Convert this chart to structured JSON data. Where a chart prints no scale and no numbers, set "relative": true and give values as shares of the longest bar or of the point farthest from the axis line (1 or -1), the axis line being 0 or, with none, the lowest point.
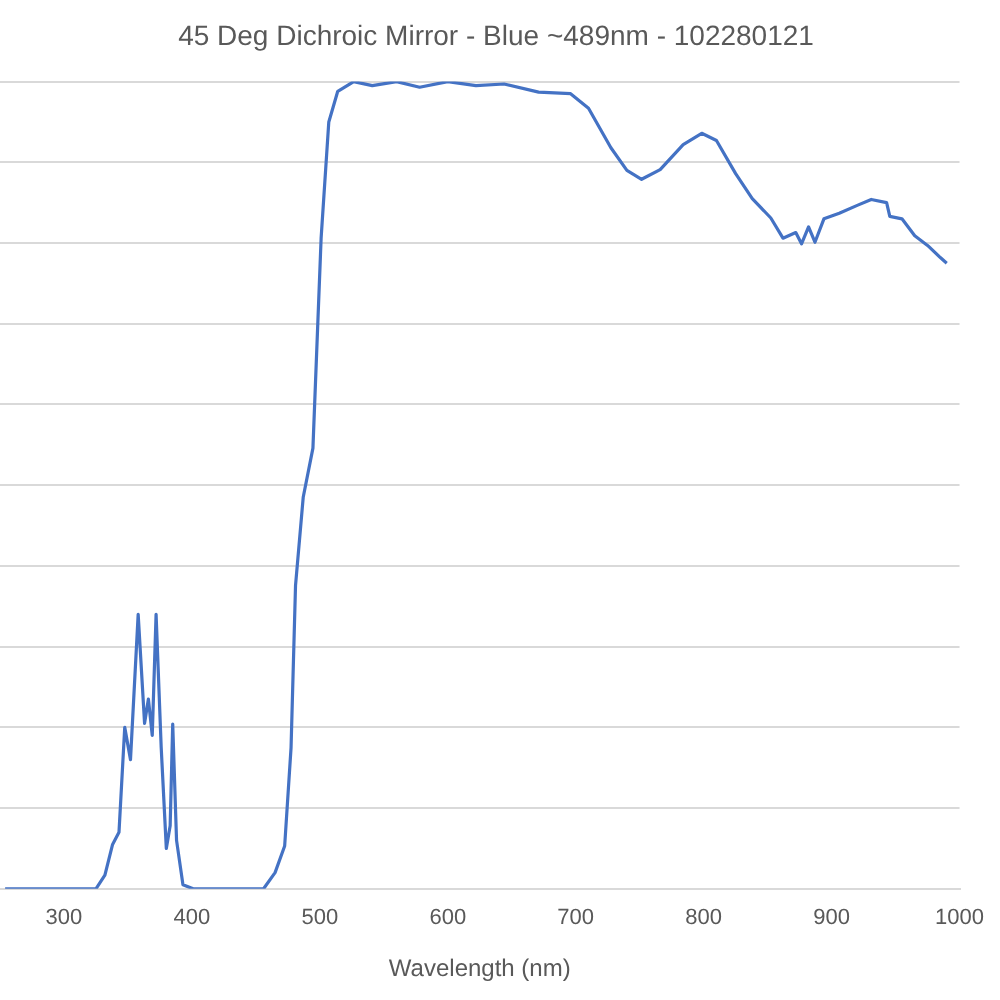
{
  "chart_data": {
    "type": "line",
    "title": "45 Deg Dichroic Mirror - Blue ~489nm - 102280121",
    "xlabel": "Wavelength (nm)",
    "relative": true,
    "grid": "y",
    "legend": false,
    "marker": "none",
    "line_style": "solid",
    "xlim": [
      250,
      1000
    ],
    "xticks": [
      300,
      400,
      500,
      600,
      700,
      800,
      900,
      1000
    ],
    "series": [
      {
        "color": "#4472c4",
        "x": [
          254,
          325,
          332,
          338,
          343,
          347.5,
          352,
          358,
          363,
          366,
          369,
          372,
          376,
          380,
          383,
          385,
          388,
          393,
          401,
          456,
          465,
          472.5,
          477.5,
          481,
          487,
          494.6,
          501,
          507,
          514,
          526.5,
          541,
          560,
          578,
          600,
          622,
          644,
          671,
          696,
          710,
          727.5,
          740,
          751.5,
          766,
          784,
          798.5,
          810,
          825,
          838,
          852.5,
          862,
          872,
          876.5,
          882,
          887,
          894,
          906,
          920.5,
          931,
          943,
          945.5,
          955,
          965,
          975,
          985,
          990
        ],
        "values": [
          0,
          0,
          0.017,
          0.055,
          0.07,
          0.2,
          0.16,
          0.34,
          0.205,
          0.235,
          0.19,
          0.34,
          0.175,
          0.05,
          0.078,
          0.204,
          0.06,
          0.005,
          0,
          0,
          0.02,
          0.053,
          0.175,
          0.376,
          0.485,
          0.546,
          0.806,
          0.95,
          0.988,
          1,
          0.995,
          1,
          0.993,
          1,
          0.995,
          0.997,
          0.987,
          0.985,
          0.967,
          0.918,
          0.89,
          0.879,
          0.891,
          0.922,
          0.936,
          0.927,
          0.886,
          0.855,
          0.831,
          0.806,
          0.813,
          0.799,
          0.82,
          0.801,
          0.83,
          0.837,
          0.847,
          0.854,
          0.85,
          0.833,
          0.83,
          0.809,
          0.797,
          0.782,
          0.775
        ]
      }
    ]
  }
}
